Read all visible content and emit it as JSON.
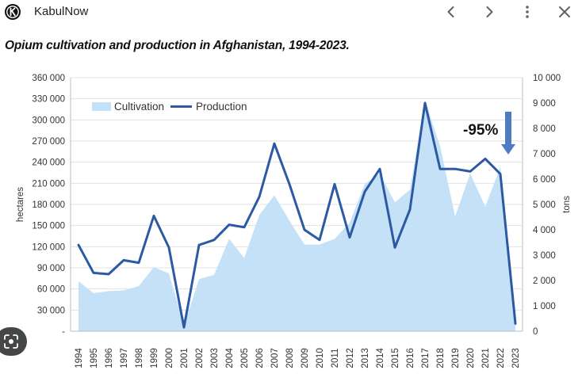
{
  "topbar": {
    "logo_icon": "kabulnow-logo-icon",
    "site_name": "KabulNow",
    "back_icon": "chevron-left-icon",
    "forward_icon": "chevron-right-icon",
    "more_icon": "more-vertical-icon",
    "close_icon": "close-icon"
  },
  "chart_title": "Opium cultivation and production in Afghanistan, 1994-2023.",
  "lens_icon": "lens-search-icon",
  "colors": {
    "cultivation_fill": "#c5e1f7",
    "production_line": "#2b5aa3",
    "annotation_arrow": "#4d7cc0",
    "grid": "#e3e3e3"
  },
  "chart_data": {
    "type": "area",
    "x": [
      "1994",
      "1995",
      "1996",
      "1997",
      "1998",
      "1999",
      "2000",
      "2001",
      "2002",
      "2003",
      "2004",
      "2005",
      "2006",
      "2007",
      "2008",
      "2009",
      "2010",
      "2011",
      "2012",
      "2013",
      "2014",
      "2015",
      "2016",
      "2017",
      "2018",
      "2019",
      "2020",
      "2021",
      "2022",
      "2023"
    ],
    "series": [
      {
        "name": "Cultivation",
        "type": "area",
        "axis": "left",
        "values": [
          71000,
          54000,
          57000,
          58000,
          64000,
          91000,
          82000,
          8000,
          74000,
          80000,
          131000,
          104000,
          165000,
          193000,
          157000,
          123000,
          123000,
          131000,
          154000,
          209000,
          224000,
          183000,
          201000,
          328000,
          263000,
          163000,
          224000,
          177000,
          233000,
          11000
        ]
      },
      {
        "name": "Production",
        "type": "line",
        "axis": "right",
        "values": [
          3400,
          2300,
          2250,
          2800,
          2700,
          4550,
          3300,
          150,
          3400,
          3600,
          4200,
          4100,
          5300,
          7400,
          5800,
          4000,
          3600,
          5800,
          3700,
          5500,
          6400,
          3300,
          4800,
          9000,
          6400,
          6400,
          6300,
          6800,
          6200,
          300
        ]
      }
    ],
    "left_axis": {
      "label": "hectares",
      "ylim": [
        0,
        360000
      ],
      "ticks": [
        "-",
        "30 000",
        "60 000",
        "90 000",
        "120 000",
        "150 000",
        "180 000",
        "210 000",
        "240 000",
        "270 000",
        "300 000",
        "330 000",
        "360 000"
      ]
    },
    "right_axis": {
      "label": "tons",
      "ylim": [
        0,
        10000
      ],
      "ticks": [
        "0",
        "1 000",
        "2 000",
        "3 000",
        "4 000",
        "5 000",
        "6 000",
        "7 000",
        "8 000",
        "9 000",
        "10 000"
      ]
    },
    "legend": {
      "placement": "top-left",
      "items": [
        "Cultivation",
        "Production"
      ]
    },
    "annotation": {
      "text": "-95%",
      "arrow": "down"
    },
    "grid": true
  }
}
